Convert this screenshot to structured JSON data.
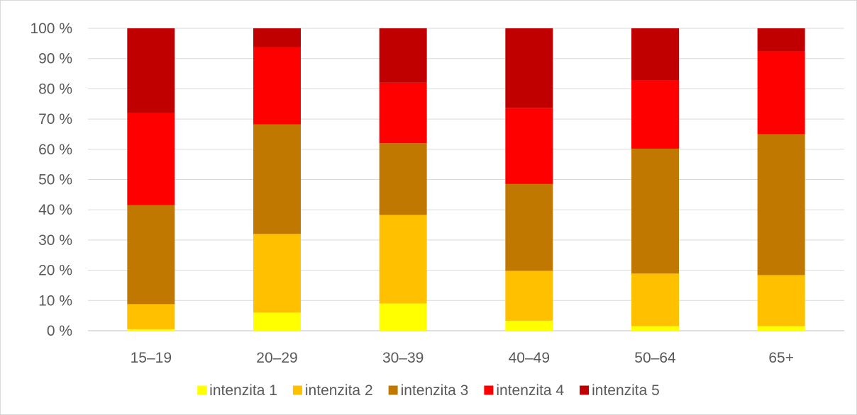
{
  "chart_data": {
    "type": "bar",
    "stacked": true,
    "categories": [
      "15–19",
      "20–29",
      "30–39",
      "40–49",
      "50–64",
      "65+"
    ],
    "series": [
      {
        "name": "intenzita 1",
        "color": "#FFFF00",
        "values": [
          0.5,
          6,
          9,
          3.3,
          1.5,
          1.5
        ]
      },
      {
        "name": "intenzita 2",
        "color": "#FFC000",
        "values": [
          8.3,
          26,
          29.3,
          16.5,
          17.4,
          16.9
        ]
      },
      {
        "name": "intenzita 3",
        "color": "#C07800",
        "values": [
          32.7,
          36.2,
          23.7,
          28.7,
          41.3,
          46.6
        ]
      },
      {
        "name": "intenzita 4",
        "color": "#FF0000",
        "values": [
          30.5,
          25.6,
          20,
          25.2,
          22.5,
          27.4
        ]
      },
      {
        "name": "intenzita 5",
        "color": "#C00000",
        "values": [
          28,
          6.2,
          18,
          26.3,
          17.3,
          7.6
        ]
      }
    ],
    "y_ticks": [
      "0 %",
      "10 %",
      "20 %",
      "30 %",
      "40 %",
      "50 %",
      "60 %",
      "70 %",
      "80 %",
      "90 %",
      "100 %"
    ],
    "ylim": [
      0,
      100
    ],
    "grid": true,
    "legend_position": "bottom"
  }
}
